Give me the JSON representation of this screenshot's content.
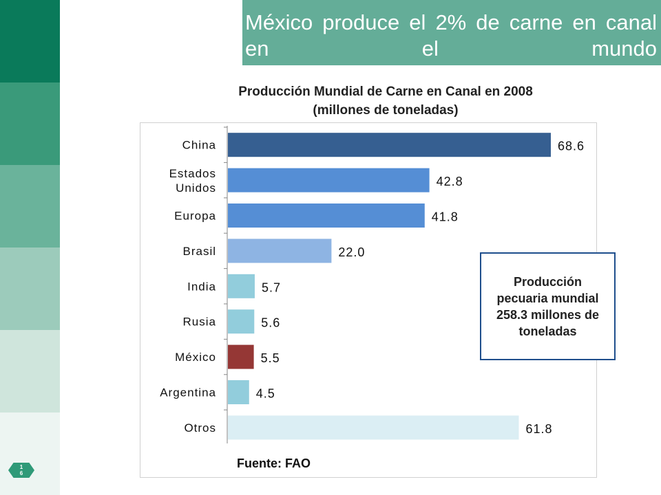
{
  "slide": {
    "title": "México produce el 2% de carne en canal en el mundo",
    "page_number": "16"
  },
  "chart_data": {
    "type": "bar",
    "orientation": "horizontal",
    "title": "Producción Mundial  de Carne en Canal en 2008",
    "subtitle": "(millones de toneladas)",
    "categories": [
      "China",
      "Estados Unidos",
      "Europa",
      "Brasil",
      "India",
      "Rusia",
      "México",
      "Argentina",
      "Otros"
    ],
    "values": [
      68.6,
      42.8,
      41.8,
      22.0,
      5.7,
      5.6,
      5.5,
      4.5,
      61.8
    ],
    "value_labels": [
      "68.6",
      "42.8",
      "41.8",
      "22.0",
      "5.7",
      "5.6",
      "5.5",
      "4.5",
      "61.8"
    ],
    "bar_colors": [
      "#365f91",
      "#558ed5",
      "#558ed5",
      "#8eb4e3",
      "#92cddc",
      "#92cddc",
      "#953735",
      "#92cddc",
      "#dbeef4"
    ],
    "xlim": [
      0,
      70
    ],
    "grid": false,
    "legend": "none",
    "annotation": "Producción pecuaria mundial 258.3 millones de toneladas",
    "source": "Fuente: FAO"
  },
  "colors": {
    "title_bar": "#64ad98",
    "box_border": "#1e4e8c"
  }
}
